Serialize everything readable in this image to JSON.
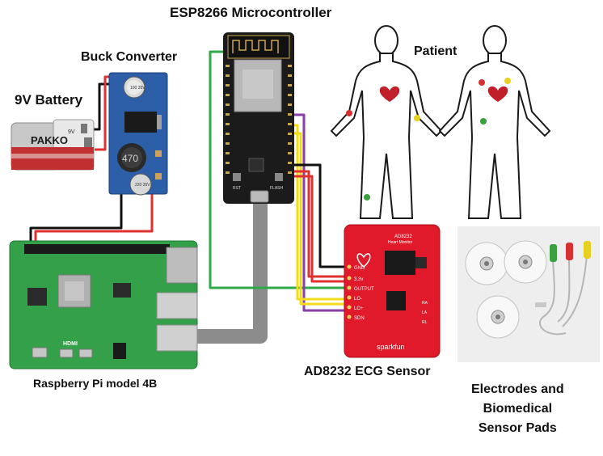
{
  "labels": {
    "esp": "ESP8266 Microcontroller",
    "buck": "Buck Converter",
    "battery": "9V Battery",
    "patient": "Patient",
    "rpi": "Raspberry Pi model 4B",
    "ecg": "AD8232 ECG Sensor",
    "electrodes": "Electrodes and\nBiomedical\nSensor Pads"
  },
  "battery_print": {
    "brand": "PAKKO",
    "voltage": "9V"
  },
  "buck_print": {
    "cap1": "100 35V",
    "cap2": "220 35V",
    "inductor": "470"
  },
  "esp_print": {
    "pins": [
      "RST",
      "FLASH"
    ]
  },
  "ecg_print": {
    "model": "AD8232",
    "subtitle": "Heart Monitor",
    "pins": [
      "GND",
      "3.3v",
      "OUTPUT",
      "LO-",
      "LO+",
      "SDN"
    ],
    "brand": "sparkfun",
    "side_pins": [
      "RA",
      "LA",
      "RL"
    ]
  },
  "rpi_print": {
    "logo": "HDMI"
  },
  "wire_colors": {
    "red": "#e03030",
    "black": "#111111",
    "green": "#2fa84a",
    "yellow": "#f2dc1a",
    "purple": "#8a3fa8",
    "gray": "#8c8c8c"
  },
  "electrode_colors": [
    "#d83030",
    "#e8d020",
    "#3aa040"
  ]
}
